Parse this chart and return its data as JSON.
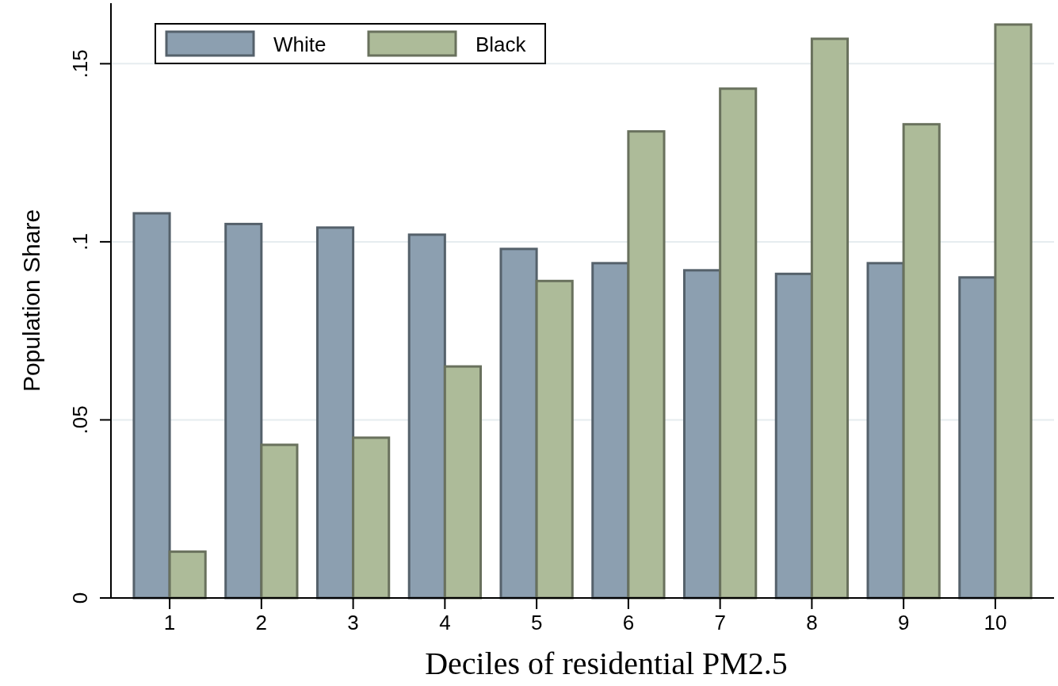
{
  "chart_data": {
    "type": "bar",
    "xlabel": "Deciles of residential PM2.5",
    "ylabel": "Population Share",
    "categories": [
      "1",
      "2",
      "3",
      "4",
      "5",
      "6",
      "7",
      "8",
      "9",
      "10"
    ],
    "series": [
      {
        "name": "White",
        "color": "#8c9fb0",
        "values": [
          0.108,
          0.105,
          0.104,
          0.102,
          0.098,
          0.094,
          0.092,
          0.091,
          0.094,
          0.09
        ]
      },
      {
        "name": "Black",
        "color": "#adbb99",
        "values": [
          0.013,
          0.043,
          0.045,
          0.065,
          0.089,
          0.131,
          0.143,
          0.157,
          0.133,
          0.161
        ]
      }
    ],
    "ylim": [
      0,
      0.167
    ],
    "yticks": [
      {
        "value": 0,
        "label": "0"
      },
      {
        "value": 0.05,
        "label": ".05"
      },
      {
        "value": 0.1,
        "label": ".1"
      },
      {
        "value": 0.15,
        "label": ".15"
      }
    ],
    "grid": "y",
    "legend": "top left"
  }
}
